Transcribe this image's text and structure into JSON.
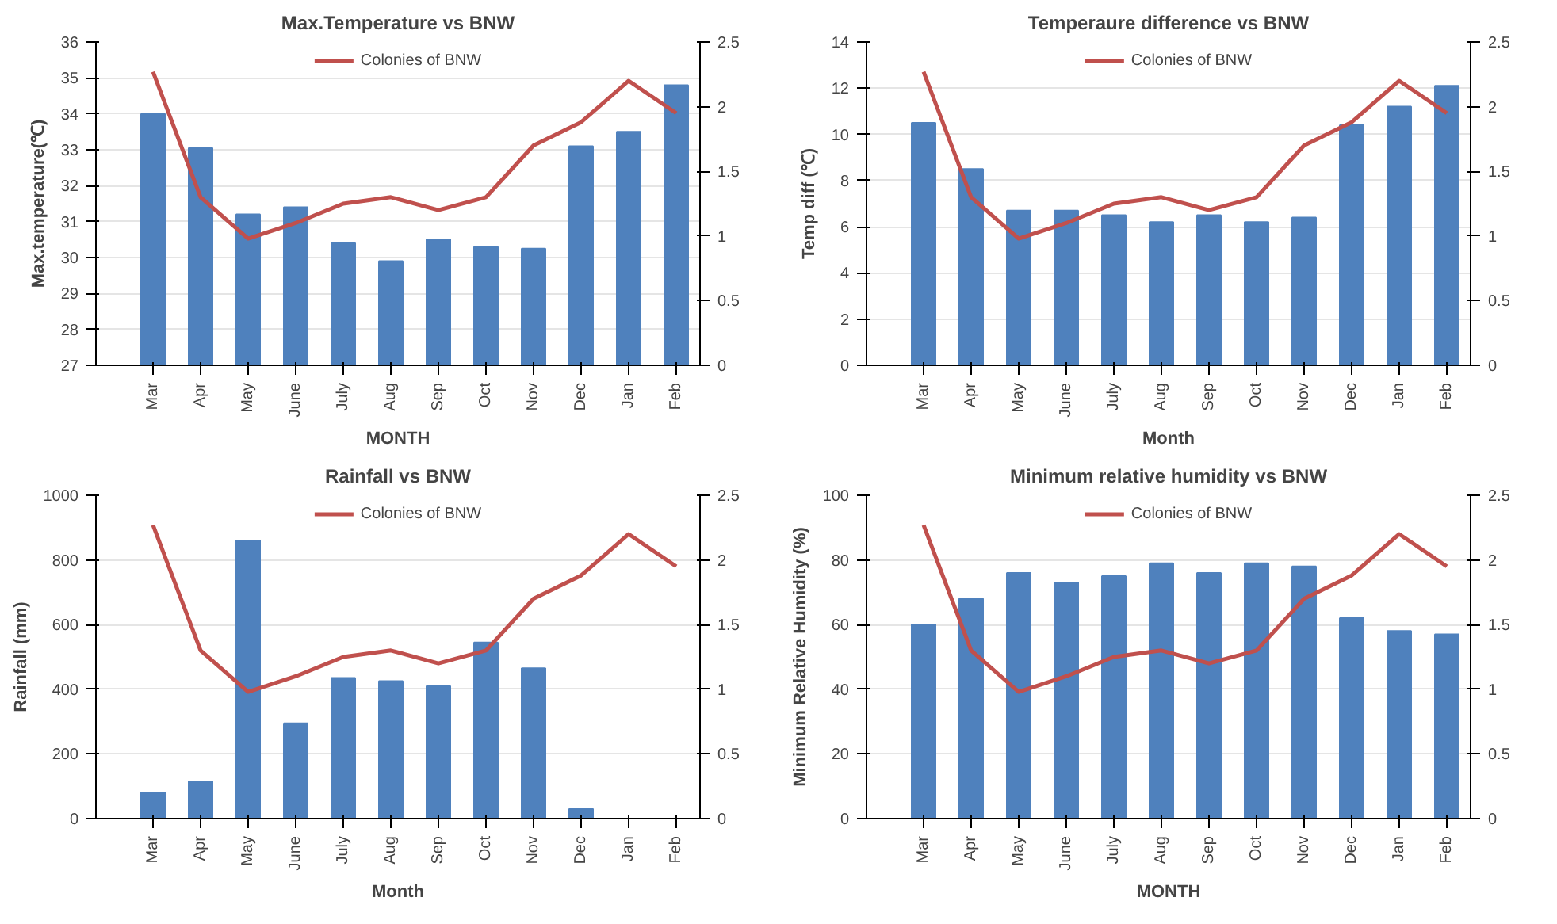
{
  "chart_data": [
    {
      "type": "bar",
      "title": "Max.Temperature vs BNW",
      "xlabel": "MONTH",
      "ylabel": "Max.temperature(℃)",
      "categories": [
        "Mar",
        "Apr",
        "May",
        "June",
        "July",
        "Aug",
        "Sep",
        "Oct",
        "Nov",
        "Dec",
        "Jan",
        "Feb"
      ],
      "series": [
        {
          "type": "bar",
          "color": "#4f81bd",
          "values": [
            34,
            33.05,
            31.2,
            31.4,
            30.4,
            29.9,
            30.5,
            30.3,
            30.25,
            33.1,
            33.5,
            34.8
          ]
        },
        {
          "type": "line",
          "name": "Colonies of BNW",
          "axis": "y2",
          "color": "#c0504d",
          "values": [
            2.27,
            1.3,
            0.98,
            1.1,
            1.25,
            1.3,
            1.2,
            1.3,
            1.7,
            1.88,
            2.2,
            1.95
          ]
        }
      ],
      "ylim": [
        27,
        36
      ],
      "yticks": [
        27,
        28,
        29,
        30,
        31,
        32,
        33,
        34,
        35,
        36
      ],
      "y2lim": [
        0,
        2.5
      ],
      "y2ticks": [
        0,
        0.5,
        1,
        1.5,
        2,
        2.5
      ],
      "grid": "y",
      "legend": "top"
    },
    {
      "type": "bar",
      "title": "Temperaure difference vs BNW",
      "xlabel": "Month",
      "ylabel": "Temp diff (℃)",
      "categories": [
        "Mar",
        "Apr",
        "May",
        "June",
        "July",
        "Aug",
        "Sep",
        "Oct",
        "Nov",
        "Dec",
        "Jan",
        "Feb"
      ],
      "series": [
        {
          "type": "bar",
          "color": "#4f81bd",
          "values": [
            10.5,
            8.5,
            6.7,
            6.7,
            6.5,
            6.2,
            6.5,
            6.2,
            6.4,
            10.4,
            11.2,
            12.1
          ]
        },
        {
          "type": "line",
          "name": "Colonies of BNW",
          "axis": "y2",
          "color": "#c0504d",
          "values": [
            2.27,
            1.3,
            0.98,
            1.1,
            1.25,
            1.3,
            1.2,
            1.3,
            1.7,
            1.88,
            2.2,
            1.95
          ]
        }
      ],
      "ylim": [
        0,
        14
      ],
      "yticks": [
        0,
        2,
        4,
        6,
        8,
        10,
        12,
        14
      ],
      "y2lim": [
        0,
        2.5
      ],
      "y2ticks": [
        0,
        0.5,
        1,
        1.5,
        2,
        2.5
      ],
      "grid": "y",
      "legend": "top"
    },
    {
      "type": "bar",
      "title": "Rainfall vs BNW",
      "xlabel": "Month",
      "ylabel": "Rainfall (mm)",
      "categories": [
        "Mar",
        "Apr",
        "May",
        "June",
        "July",
        "Aug",
        "Sep",
        "Oct",
        "Nov",
        "Dec",
        "Jan",
        "Feb"
      ],
      "series": [
        {
          "type": "bar",
          "color": "#4f81bd",
          "values": [
            80,
            115,
            860,
            295,
            435,
            425,
            410,
            545,
            465,
            30,
            0,
            0
          ]
        },
        {
          "type": "line",
          "name": "Colonies of BNW",
          "axis": "y2",
          "color": "#c0504d",
          "values": [
            2.27,
            1.3,
            0.98,
            1.1,
            1.25,
            1.3,
            1.2,
            1.3,
            1.7,
            1.88,
            2.2,
            1.95
          ]
        }
      ],
      "ylim": [
        0,
        1000
      ],
      "yticks": [
        0,
        200,
        400,
        600,
        800,
        1000
      ],
      "y2lim": [
        0,
        2.5
      ],
      "y2ticks": [
        0,
        0.5,
        1,
        1.5,
        2,
        2.5
      ],
      "grid": "y",
      "legend": "top"
    },
    {
      "type": "bar",
      "title": "Minimum relative humidity vs BNW",
      "xlabel": "MONTH",
      "ylabel": "Minimum Relative Humidity (%)",
      "categories": [
        "Mar",
        "Apr",
        "May",
        "June",
        "July",
        "Aug",
        "Sep",
        "Oct",
        "Nov",
        "Dec",
        "Jan",
        "Feb"
      ],
      "series": [
        {
          "type": "bar",
          "color": "#4f81bd",
          "values": [
            60,
            68,
            76,
            73,
            75,
            79,
            76,
            79,
            78,
            62,
            58,
            57
          ]
        },
        {
          "type": "line",
          "name": "Colonies of BNW",
          "axis": "y2",
          "color": "#c0504d",
          "values": [
            2.27,
            1.3,
            0.98,
            1.1,
            1.25,
            1.3,
            1.2,
            1.3,
            1.7,
            1.88,
            2.2,
            1.95
          ]
        }
      ],
      "ylim": [
        0,
        100
      ],
      "yticks": [
        0,
        20,
        40,
        60,
        80,
        100
      ],
      "y2lim": [
        0,
        2.5
      ],
      "y2ticks": [
        0,
        0.5,
        1,
        1.5,
        2,
        2.5
      ],
      "grid": "y",
      "legend": "top"
    }
  ]
}
